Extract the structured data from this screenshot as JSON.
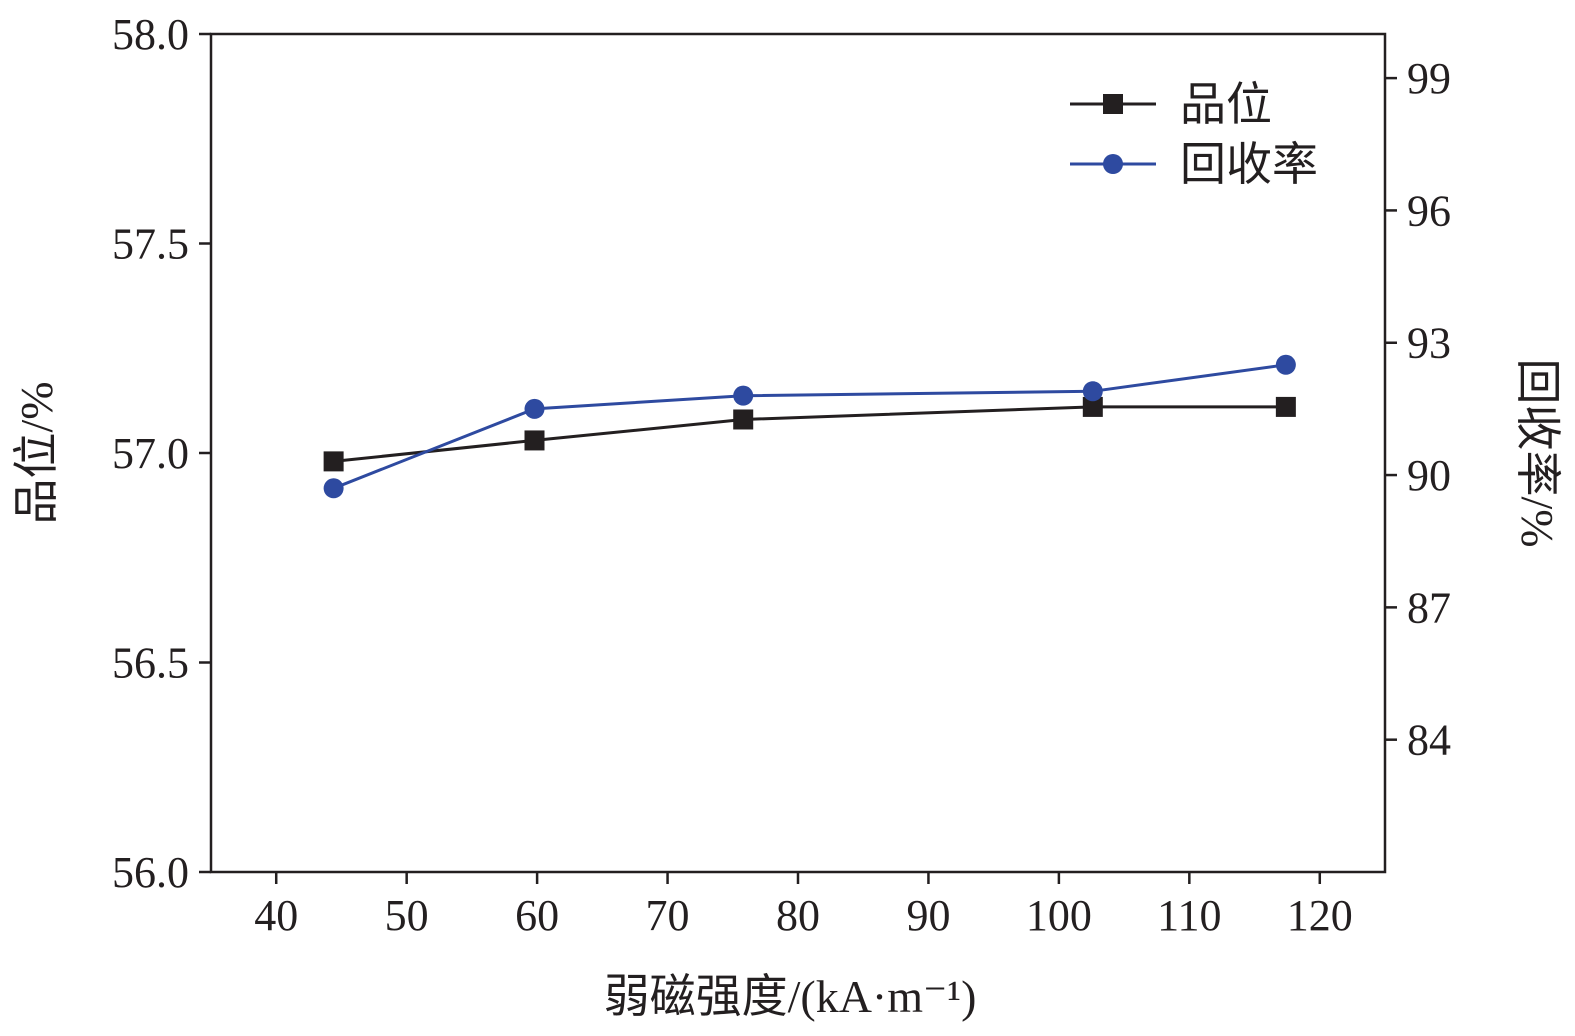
{
  "chart_data": {
    "type": "line",
    "xlabel": "弱磁强度/(kA·m⁻¹)",
    "ylabel_left": "品位/%",
    "ylabel_right": "回收率/%",
    "xlim": [
      35,
      125
    ],
    "xticks": [
      40,
      50,
      60,
      70,
      80,
      90,
      100,
      110,
      120
    ],
    "ylim_left": [
      56.0,
      58.0
    ],
    "yticks_left": [
      "56.0",
      "56.5",
      "57.0",
      "57.5",
      "58.0"
    ],
    "ylim_right": [
      81,
      100
    ],
    "yticks_right": [
      "84",
      "87",
      "90",
      "93",
      "96",
      "99"
    ],
    "grid": false,
    "legend_position": "top-right",
    "series": [
      {
        "name": "品位",
        "axis": "left",
        "marker": "square",
        "color": "#231f20",
        "x": [
          44.4,
          59.8,
          75.8,
          102.6,
          117.4
        ],
        "values": [
          56.98,
          57.03,
          57.08,
          57.11,
          57.11
        ]
      },
      {
        "name": "回收率",
        "axis": "right",
        "marker": "circle",
        "color": "#2e4aa0",
        "x": [
          44.4,
          59.8,
          75.8,
          102.6,
          117.4
        ],
        "values": [
          89.7,
          91.5,
          91.8,
          91.9,
          92.5
        ]
      }
    ]
  }
}
